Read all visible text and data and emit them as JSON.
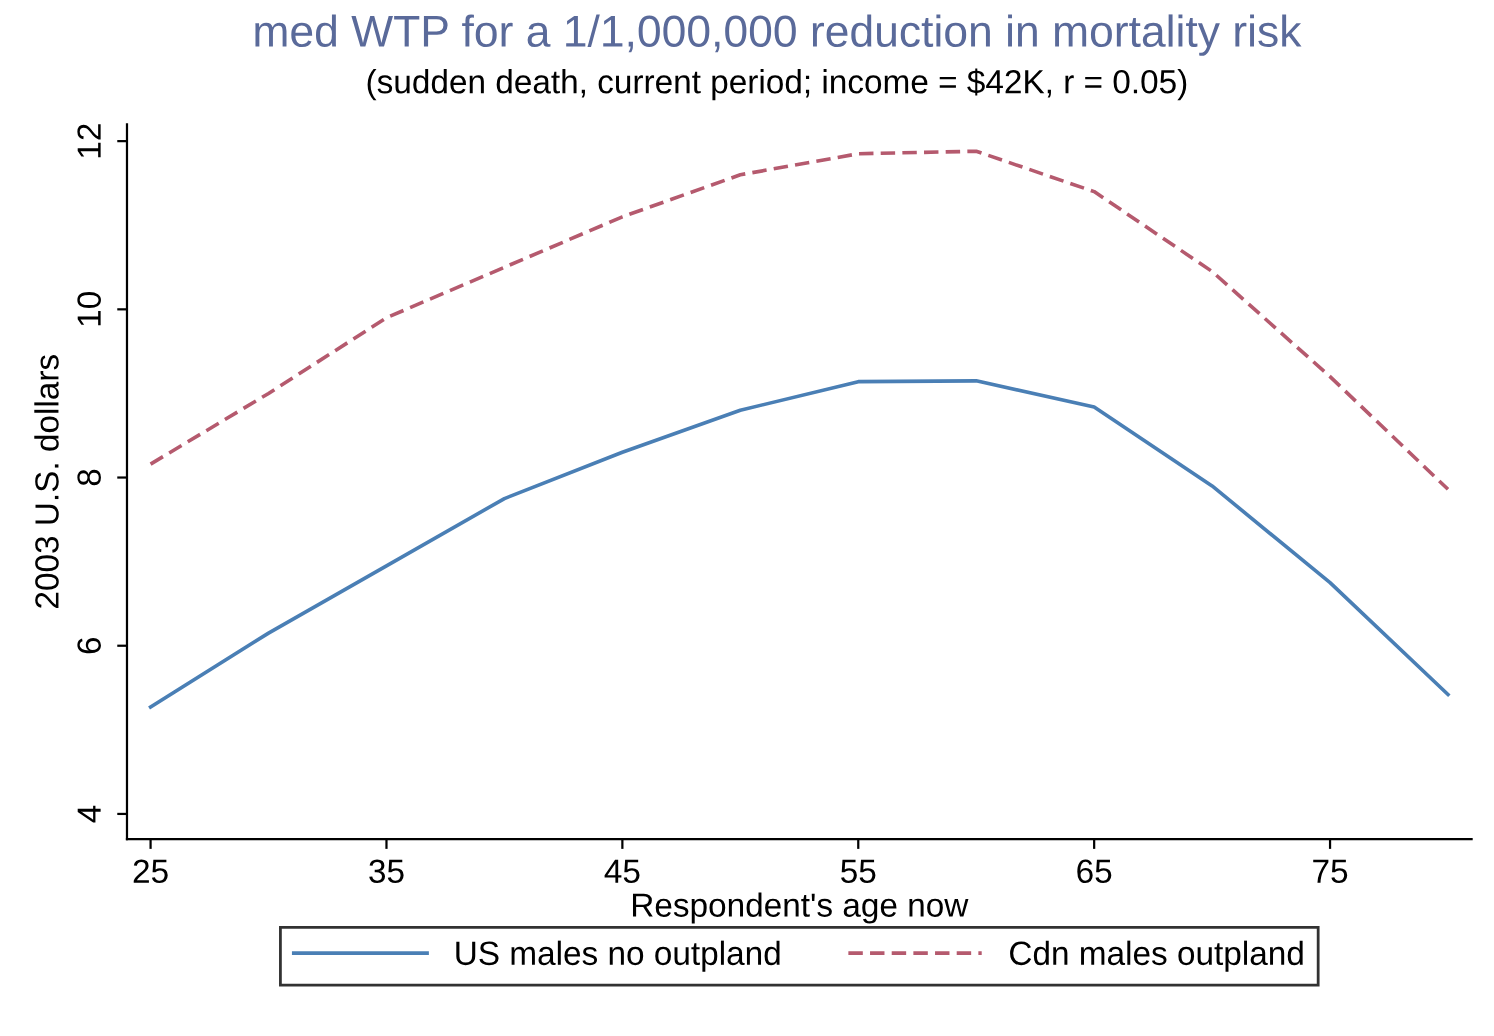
{
  "chart_data": {
    "type": "line",
    "title": "med WTP for a 1/1,000,000 reduction in mortality risk",
    "subtitle": "(sudden death, current period; income = $42K, r = 0.05)",
    "xlabel": "Respondent's age now",
    "ylabel": "2003 U.S. dollars",
    "x": [
      25,
      30,
      35,
      40,
      45,
      50,
      55,
      60,
      65,
      70,
      75,
      80
    ],
    "series": [
      {
        "name": "US males no outpland",
        "color": "#4a7fb5",
        "line_style": "solid",
        "values": [
          5.27,
          6.15,
          6.95,
          7.75,
          8.3,
          8.8,
          9.14,
          9.15,
          8.84,
          7.9,
          6.75,
          5.42
        ]
      },
      {
        "name": "Cdn males outpland",
        "color": "#b55a6e",
        "line_style": "dashed",
        "values": [
          8.16,
          9.0,
          9.9,
          10.5,
          11.1,
          11.6,
          11.85,
          11.88,
          11.4,
          10.45,
          9.2,
          7.86
        ]
      }
    ],
    "xlim": [
      24,
      81
    ],
    "ylim": [
      3.7,
      12.2
    ],
    "xticks": [
      25,
      35,
      45,
      55,
      65,
      75
    ],
    "yticks": [
      4,
      6,
      8,
      10,
      12
    ],
    "grid": false,
    "legend": "bottom",
    "marker": "none"
  }
}
